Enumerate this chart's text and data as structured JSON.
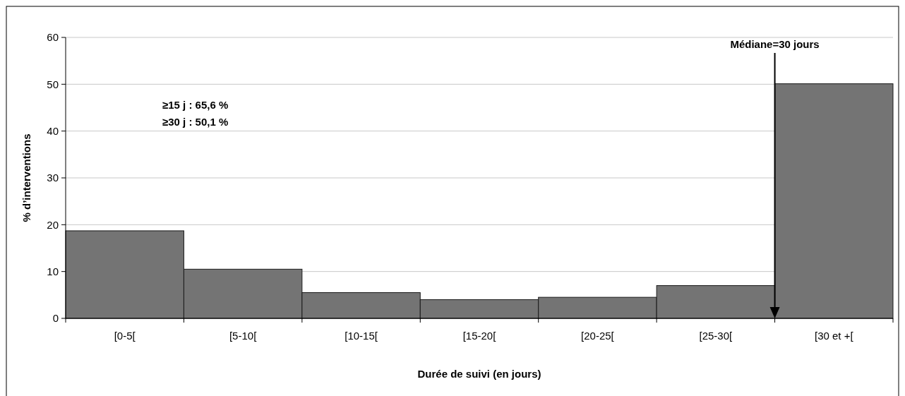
{
  "chart_data": {
    "type": "bar",
    "xlabel": "Durée de suivi (en jours)",
    "ylabel": "% d’interventions",
    "categories": [
      "[0-5[",
      "[5-10[",
      "[10-15[",
      "[15-20[",
      "[20-25[",
      "[25-30[",
      "[30 et +["
    ],
    "values": [
      18.7,
      10.5,
      5.5,
      4.0,
      4.5,
      7.0,
      50.1
    ],
    "color": "#747474",
    "ylim": [
      0,
      60
    ],
    "yticks": [
      0,
      10,
      20,
      30,
      40,
      50,
      60
    ],
    "grid": "y",
    "annotations": [
      "Médiane=30 jours",
      "≥15 j : 65,6 %",
      "≥30 j : 50,1 %"
    ]
  }
}
